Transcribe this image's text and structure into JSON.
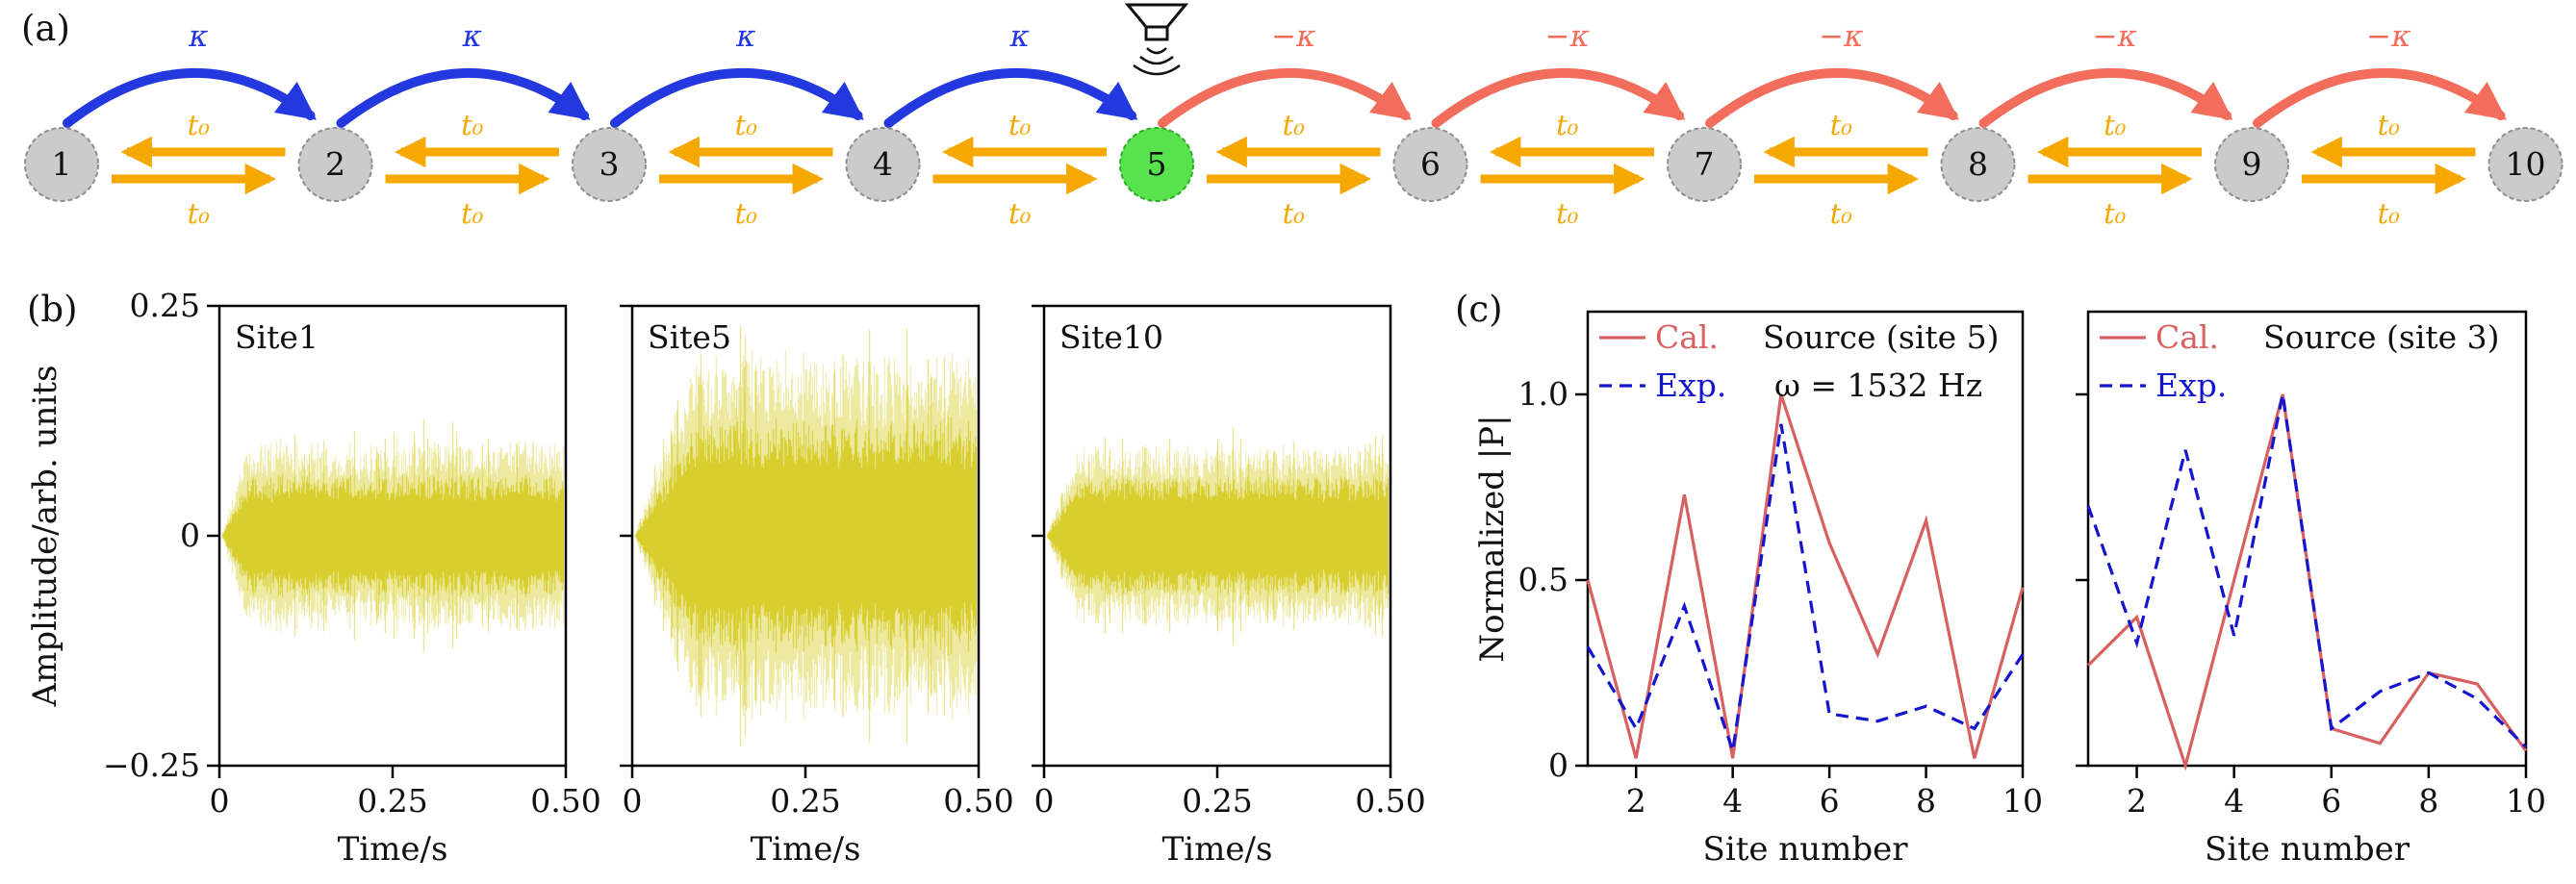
{
  "figure": {
    "background": "#ffffff",
    "panels": {
      "a": "(a)",
      "b": "(b)",
      "c": "(c)"
    }
  },
  "diagram": {
    "sites": [
      "1",
      "2",
      "3",
      "4",
      "5",
      "6",
      "7",
      "8",
      "9",
      "10"
    ],
    "source_index": 4,
    "site_fill": "#cbcbcb",
    "site_stroke": "#8f8f8f",
    "source_fill": "#57e24e",
    "source_stroke": "#2fae27",
    "left_coupling_label": "κ",
    "right_coupling_label": "−κ",
    "hopping_label": "t₀",
    "left_coupling_color": "#2438e0",
    "right_coupling_color": "#f26d5b",
    "hopping_color": "#f5a800",
    "speaker_icon": "loudspeaker-icon"
  },
  "chart_data": [
    {
      "type": "line",
      "panel": "b",
      "title": "Site1",
      "xlabel": "Time/s",
      "ylabel": "Amplitude/arb. units",
      "xlim": [
        0,
        0.5
      ],
      "ylim": [
        -0.25,
        0.25
      ],
      "xtick_values": [
        0,
        0.25,
        0.5
      ],
      "xtick_labels": [
        "0",
        "0.25",
        "0.50"
      ],
      "ytick_values": [
        -0.25,
        0,
        0.25
      ],
      "ytick_labels": [
        "−0.25",
        "0",
        "0.25"
      ],
      "yticks_labeled": true,
      "series": [
        {
          "name": "measured waveform",
          "kind": "noise-burst",
          "envelope_amplitude": 0.08,
          "rise_time_s": 0.04,
          "color": "#d8ce2e"
        }
      ]
    },
    {
      "type": "line",
      "panel": "b",
      "title": "Site5",
      "xlabel": "Time/s",
      "ylabel": "Amplitude/arb. units",
      "xlim": [
        0,
        0.5
      ],
      "ylim": [
        -0.25,
        0.25
      ],
      "xtick_values": [
        0,
        0.25,
        0.5
      ],
      "xtick_labels": [
        "0",
        "0.25",
        "0.50"
      ],
      "ytick_values": [
        -0.25,
        0,
        0.25
      ],
      "ytick_labels": [
        "−0.25",
        "0",
        "0.25"
      ],
      "yticks_labeled": false,
      "series": [
        {
          "name": "measured waveform",
          "kind": "noise-burst",
          "envelope_amplitude": 0.155,
          "rise_time_s": 0.09,
          "color": "#d8ce2e"
        }
      ]
    },
    {
      "type": "line",
      "panel": "b",
      "title": "Site10",
      "xlabel": "Time/s",
      "ylabel": "Amplitude/arb. units",
      "xlim": [
        0,
        0.5
      ],
      "ylim": [
        -0.25,
        0.25
      ],
      "xtick_values": [
        0,
        0.25,
        0.5
      ],
      "xtick_labels": [
        "0",
        "0.25",
        "0.50"
      ],
      "ytick_values": [
        -0.25,
        0,
        0.25
      ],
      "ytick_labels": [
        "−0.25",
        "0",
        "0.25"
      ],
      "yticks_labeled": false,
      "series": [
        {
          "name": "measured waveform",
          "kind": "noise-burst",
          "envelope_amplitude": 0.078,
          "rise_time_s": 0.05,
          "color": "#d8ce2e"
        }
      ]
    },
    {
      "type": "line",
      "panel": "c",
      "xlabel": "Site number",
      "ylabel": "Normalized |P|",
      "x": [
        1,
        2,
        3,
        4,
        5,
        6,
        7,
        8,
        9,
        10
      ],
      "xtick_values": [
        2,
        4,
        6,
        8,
        10
      ],
      "xtick_labels": [
        "2",
        "4",
        "6",
        "8",
        "10"
      ],
      "ytick_values": [
        0,
        0.5,
        1.0
      ],
      "ytick_labels": [
        "0",
        "0.5",
        "1.0"
      ],
      "ylim": [
        0,
        1.22
      ],
      "yticks_labeled": true,
      "annotations": [
        "Source (site 5)",
        "ω = 1532 Hz"
      ],
      "series": [
        {
          "name": "Cal.",
          "style": "solid",
          "color": "#d96060",
          "values": [
            0.5,
            0.02,
            0.73,
            0.02,
            1.0,
            0.6,
            0.3,
            0.66,
            0.02,
            0.48
          ]
        },
        {
          "name": "Exp.",
          "style": "dashed",
          "color": "#1515cf",
          "values": [
            0.32,
            0.1,
            0.43,
            0.04,
            0.92,
            0.14,
            0.12,
            0.16,
            0.1,
            0.3
          ]
        }
      ]
    },
    {
      "type": "line",
      "panel": "c",
      "xlabel": "Site number",
      "ylabel": "Normalized |P|",
      "x": [
        1,
        2,
        3,
        4,
        5,
        6,
        7,
        8,
        9,
        10
      ],
      "xtick_values": [
        2,
        4,
        6,
        8,
        10
      ],
      "xtick_labels": [
        "2",
        "4",
        "6",
        "8",
        "10"
      ],
      "ytick_values": [
        0,
        0.5,
        1.0
      ],
      "ytick_labels": [
        "0",
        "0.5",
        "1.0"
      ],
      "ylim": [
        0,
        1.22
      ],
      "yticks_labeled": false,
      "annotations": [
        "Source (site 3)"
      ],
      "series": [
        {
          "name": "Cal.",
          "style": "solid",
          "color": "#d96060",
          "values": [
            0.27,
            0.4,
            0.0,
            0.5,
            1.0,
            0.1,
            0.06,
            0.25,
            0.22,
            0.04
          ]
        },
        {
          "name": "Exp.",
          "style": "dashed",
          "color": "#1515cf",
          "values": [
            0.7,
            0.33,
            0.85,
            0.35,
            1.0,
            0.1,
            0.2,
            0.25,
            0.18,
            0.05
          ]
        }
      ]
    }
  ]
}
